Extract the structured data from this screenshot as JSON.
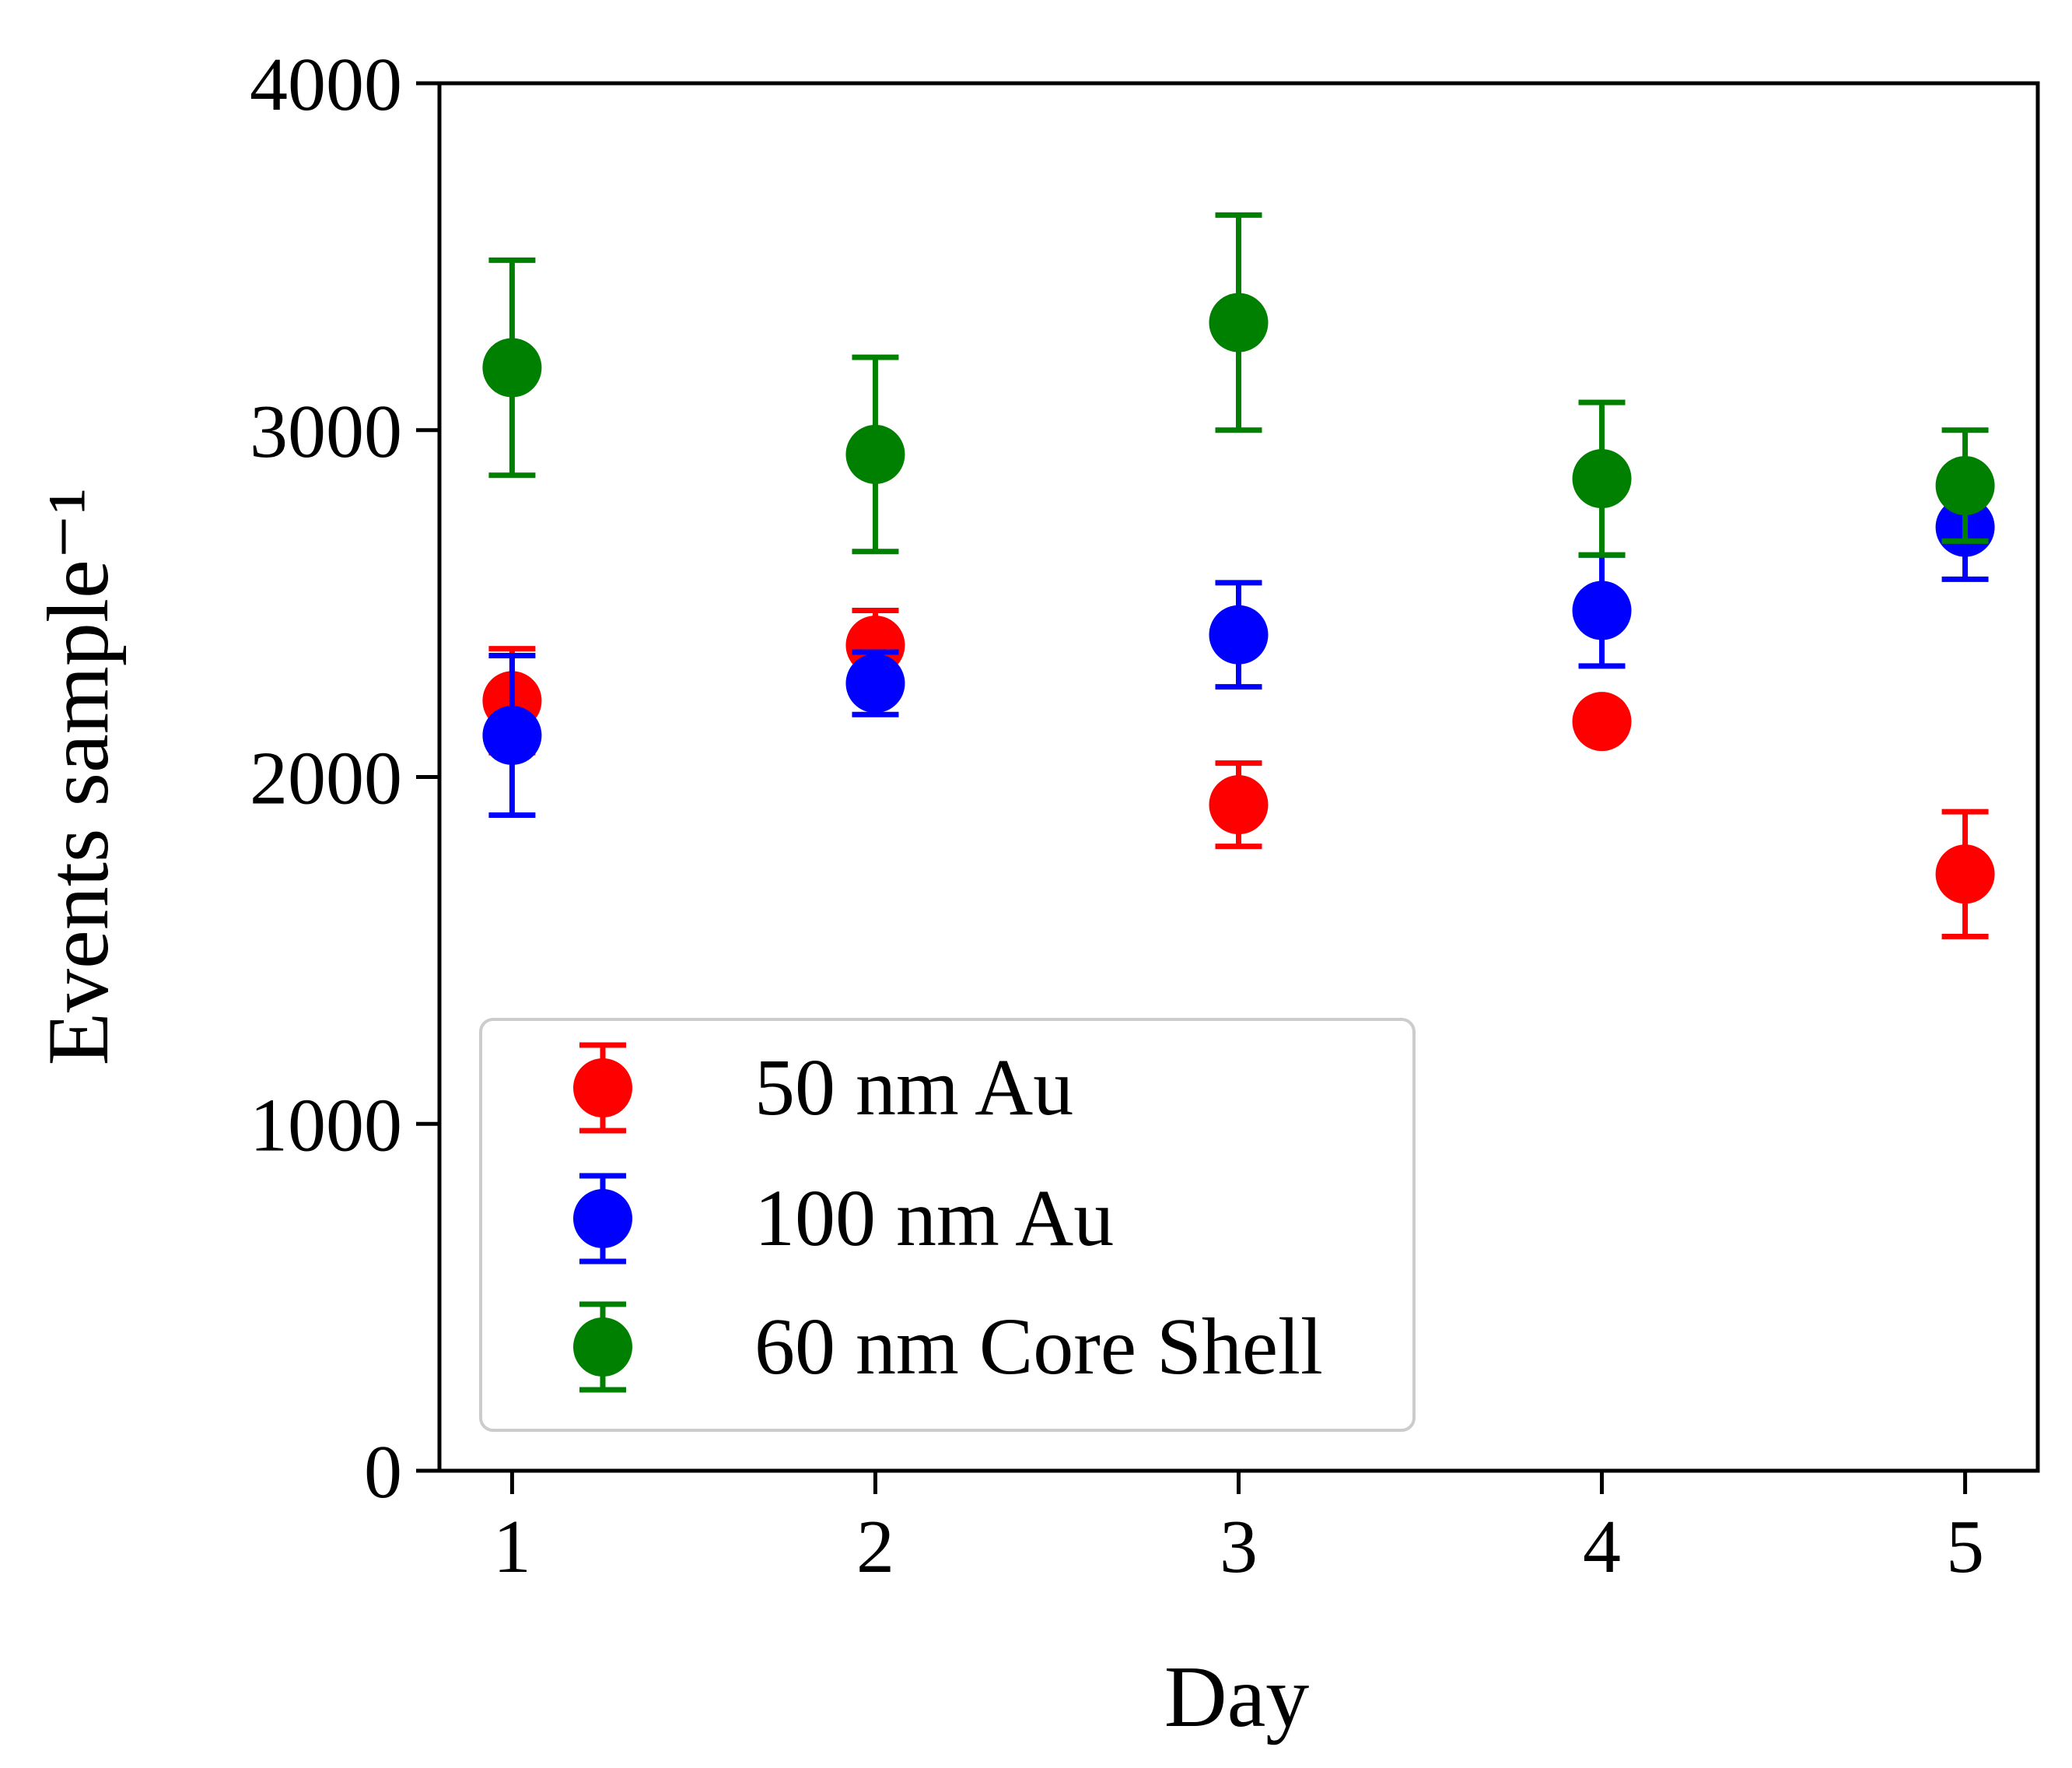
{
  "chart_data": {
    "type": "scatter",
    "title": "",
    "xlabel": "Day",
    "ylabel": "Events sample⁻¹",
    "x": [
      1,
      2,
      3,
      4,
      5
    ],
    "xlim": [
      0.8,
      5.2
    ],
    "ylim": [
      0,
      4000
    ],
    "xticks": [
      "1",
      "2",
      "3",
      "4",
      "5"
    ],
    "yticks": [
      "0",
      "1000",
      "2000",
      "3000",
      "4000"
    ],
    "grid": false,
    "legend_position": "lower-left",
    "series": [
      {
        "name": "50 nm Au",
        "color": "#ff0000",
        "values": [
          2220,
          2380,
          1920,
          2160,
          1720
        ],
        "errors": [
          150,
          100,
          120,
          30,
          180
        ]
      },
      {
        "name": "100 nm Au",
        "color": "#0000ff",
        "values": [
          2120,
          2270,
          2410,
          2480,
          2720
        ],
        "errors": [
          230,
          90,
          150,
          160,
          150
        ]
      },
      {
        "name": "60 nm Core Shell",
        "color": "#008000",
        "values": [
          3180,
          2930,
          3310,
          2860,
          2840
        ],
        "errors": [
          310,
          280,
          310,
          220,
          160
        ]
      }
    ]
  }
}
